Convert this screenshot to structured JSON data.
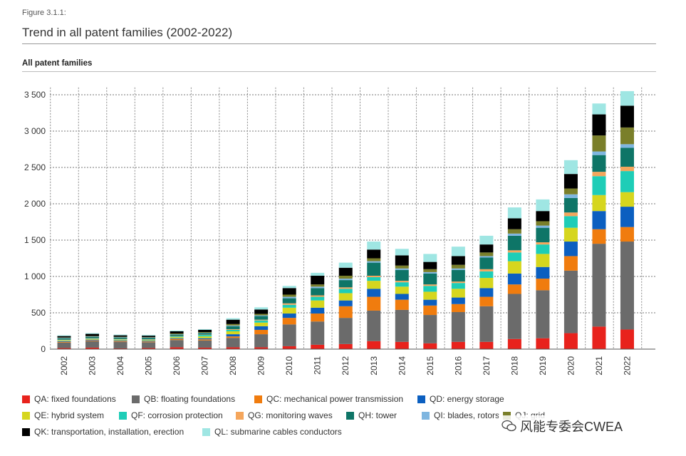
{
  "figure_label": "Figure 3.1.1:",
  "title": "Trend in all patent families (2002-2022)",
  "watermark": "风能专委会CWEA",
  "chart_data": {
    "type": "bar",
    "stacked": true,
    "title": "All patent families",
    "ylim": [
      0,
      3500
    ],
    "yticks": [
      0,
      500,
      1000,
      1500,
      2000,
      2500,
      3000,
      3500
    ],
    "ytick_labels": [
      "0",
      "500",
      "1 000",
      "1 500",
      "2 000",
      "2 500",
      "3 000",
      "3 500"
    ],
    "grid": true,
    "legend_position": "bottom",
    "categories": [
      "2002",
      "2003",
      "2004",
      "2005",
      "2006",
      "2007",
      "2008",
      "2009",
      "2010",
      "2011",
      "2012",
      "2013",
      "2014",
      "2015",
      "2016",
      "2017",
      "2018",
      "2019",
      "2020",
      "2021",
      "2022"
    ],
    "series": [
      {
        "name": "QA: fixed foundations",
        "color": "#e8221c",
        "values": [
          15,
          20,
          10,
          15,
          25,
          20,
          25,
          25,
          40,
          60,
          70,
          110,
          100,
          80,
          100,
          100,
          140,
          150,
          220,
          310,
          270
        ]
      },
      {
        "name": "QB: floating foundations",
        "color": "#6b6b6b",
        "values": [
          75,
          90,
          90,
          80,
          100,
          100,
          130,
          180,
          300,
          320,
          360,
          420,
          440,
          390,
          410,
          490,
          620,
          660,
          860,
          1140,
          1210
        ]
      },
      {
        "name": "QC: mechanical power transmission",
        "color": "#f07c0e",
        "values": [
          10,
          10,
          10,
          10,
          15,
          15,
          20,
          60,
          90,
          110,
          160,
          190,
          140,
          130,
          110,
          130,
          130,
          160,
          200,
          200,
          200
        ]
      },
      {
        "name": "QD: energy storage",
        "color": "#0b5fc0",
        "values": [
          10,
          10,
          10,
          10,
          10,
          15,
          30,
          50,
          60,
          80,
          80,
          110,
          80,
          80,
          90,
          120,
          150,
          160,
          200,
          250,
          280
        ]
      },
      {
        "name": "QE: hybrid system",
        "color": "#d6d61e",
        "values": [
          10,
          10,
          10,
          10,
          15,
          25,
          40,
          50,
          80,
          100,
          100,
          110,
          100,
          110,
          120,
          140,
          170,
          180,
          190,
          220,
          200
        ]
      },
      {
        "name": "QF: corrosion protection",
        "color": "#1ecdb7",
        "values": [
          5,
          5,
          5,
          5,
          10,
          20,
          20,
          30,
          40,
          50,
          60,
          50,
          60,
          80,
          80,
          90,
          120,
          130,
          160,
          260,
          290
        ]
      },
      {
        "name": "QG: monitoring waves",
        "color": "#f5a65c",
        "values": [
          5,
          5,
          5,
          5,
          5,
          5,
          10,
          10,
          20,
          20,
          20,
          20,
          20,
          20,
          20,
          30,
          30,
          30,
          50,
          60,
          60
        ]
      },
      {
        "name": "QH: tower",
        "color": "#0e7567",
        "values": [
          20,
          20,
          20,
          20,
          20,
          20,
          40,
          50,
          70,
          100,
          100,
          180,
          150,
          150,
          160,
          160,
          200,
          200,
          200,
          230,
          260
        ]
      },
      {
        "name": "QI: blades, rotors",
        "color": "#7fb6e0",
        "values": [
          5,
          5,
          5,
          5,
          5,
          5,
          10,
          10,
          20,
          20,
          20,
          20,
          20,
          20,
          20,
          20,
          30,
          30,
          50,
          50,
          50
        ]
      },
      {
        "name": "QJ: grid",
        "color": "#7a7f2a",
        "values": [
          5,
          5,
          5,
          5,
          10,
          10,
          20,
          20,
          30,
          30,
          40,
          40,
          40,
          40,
          50,
          50,
          60,
          60,
          80,
          220,
          230
        ]
      },
      {
        "name": "QK: transportation, installation, erection",
        "color": "#000000",
        "values": [
          20,
          30,
          20,
          20,
          30,
          30,
          60,
          60,
          90,
          120,
          110,
          120,
          140,
          100,
          120,
          110,
          150,
          140,
          200,
          290,
          300
        ]
      },
      {
        "name": "QL: submarine cables conductors",
        "color": "#9fe6e3",
        "values": [
          10,
          10,
          10,
          10,
          10,
          10,
          20,
          30,
          30,
          40,
          70,
          110,
          90,
          110,
          130,
          120,
          150,
          160,
          190,
          150,
          200
        ]
      }
    ]
  }
}
